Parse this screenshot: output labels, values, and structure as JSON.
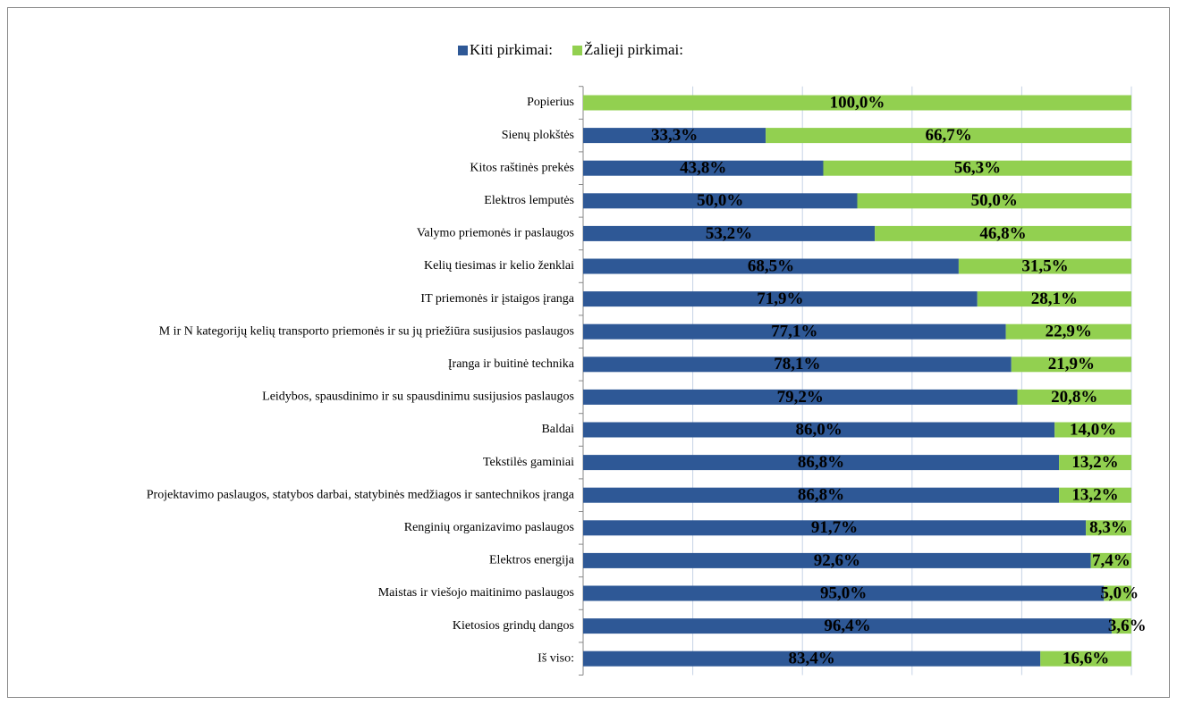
{
  "chart_data": {
    "type": "stacked-bar-horizontal",
    "categories": [
      "Popierius",
      "Sienų plokštės",
      "Kitos raštinės prekės",
      "Elektros lemputės",
      "Valymo priemonės ir paslaugos",
      "Kelių tiesimas ir kelio ženklai",
      "IT priemonės ir įstaigos įranga",
      "M ir N kategorijų kelių transporto priemonės ir su jų priežiūra susijusios paslaugos",
      "Įranga ir buitinė technika",
      "Leidybos, spausdinimo ir su spausdinimu susijusios paslaugos",
      "Baldai",
      "Tekstilės gaminiai",
      "Projektavimo paslaugos, statybos darbai, statybinės medžiagos ir santechnikos įranga",
      "Renginių organizavimo paslaugos",
      "Elektros energija",
      "Maistas ir viešojo maitinimo paslaugos",
      "Kietosios grindų dangos",
      "Iš viso:"
    ],
    "series": [
      {
        "name": "Kiti pirkimai:",
        "color": "#2e5896",
        "values": [
          0,
          33.3,
          43.8,
          50.0,
          53.2,
          68.5,
          71.9,
          77.1,
          78.1,
          79.2,
          86.0,
          86.8,
          86.8,
          91.7,
          92.6,
          95.0,
          96.4,
          83.4
        ],
        "value_labels": [
          null,
          "33,3%",
          "43,8%",
          "50,0%",
          "53,2%",
          "68,5%",
          "71,9%",
          "77,1%",
          "78,1%",
          "79,2%",
          "86,0%",
          "86,8%",
          "86,8%",
          "91,7%",
          "92,6%",
          "95,0%",
          "96,4%",
          "83,4%"
        ]
      },
      {
        "name": "Žalieji pirkimai:",
        "color": "#92d050",
        "values": [
          100.0,
          66.7,
          56.3,
          50.0,
          46.8,
          31.5,
          28.1,
          22.9,
          21.9,
          20.8,
          14.0,
          13.2,
          13.2,
          8.3,
          7.4,
          5.0,
          3.6,
          16.6
        ],
        "value_labels": [
          "100,0%",
          "66,7%",
          "56,3%",
          "50,0%",
          "46,8%",
          "31,5%",
          "28,1%",
          "22,9%",
          "21,9%",
          "20,8%",
          "14,0%",
          "13,2%",
          "13,2%",
          "8,3%",
          "7,4%",
          "5,0%",
          "3,6%",
          "16,6%"
        ]
      }
    ],
    "xlim": [
      0,
      100
    ],
    "xticks": [
      0,
      20,
      40,
      60,
      80,
      100
    ],
    "grid": true,
    "legend": "top"
  }
}
